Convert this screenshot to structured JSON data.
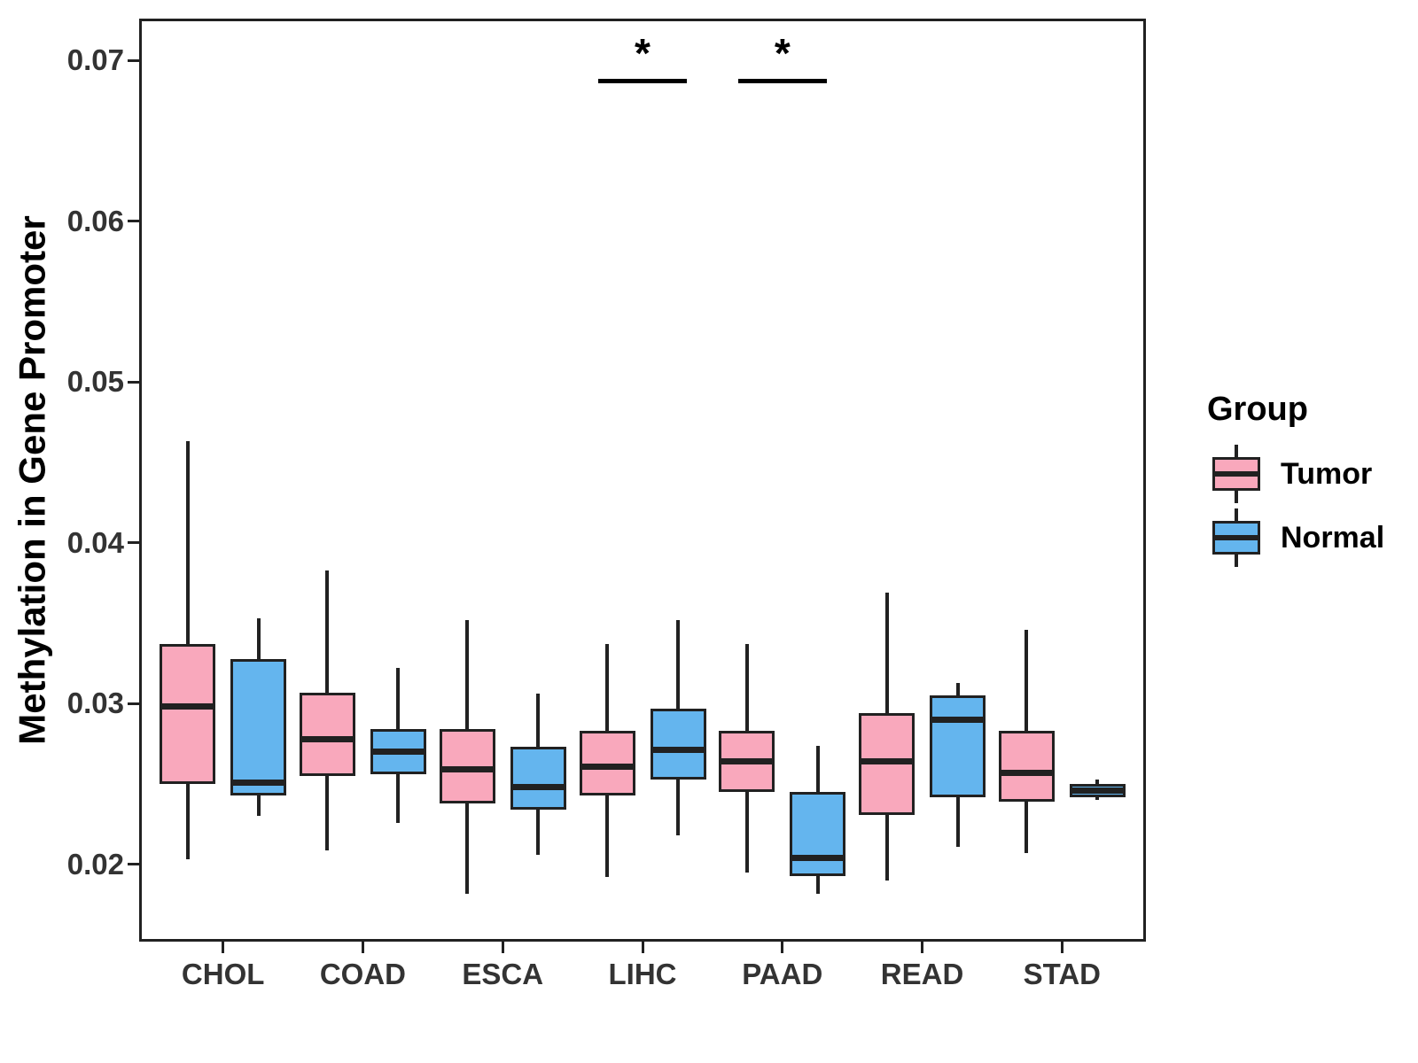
{
  "chart_data": {
    "type": "boxplot",
    "title": "",
    "xlabel": "",
    "ylabel": "Methylation in Gene Promoter",
    "categories": [
      "CHOL",
      "COAD",
      "ESCA",
      "LIHC",
      "PAAD",
      "READ",
      "STAD"
    ],
    "ylim": [
      0.0152,
      0.0726
    ],
    "yticks": [
      {
        "label": "0.02",
        "value": 0.02
      },
      {
        "label": "0.03",
        "value": 0.03
      },
      {
        "label": "0.04",
        "value": 0.04
      },
      {
        "label": "0.05",
        "value": 0.05
      },
      {
        "label": "0.06",
        "value": 0.06
      },
      {
        "label": "0.07",
        "value": 0.07
      }
    ],
    "grid": false,
    "legend": {
      "title": "Group",
      "position": "right",
      "entries": [
        {
          "label": "Tumor",
          "color": "#F9A8BC"
        },
        {
          "label": "Normal",
          "color": "#64B5EE"
        }
      ]
    },
    "series": [
      {
        "name": "Tumor",
        "color": "#F9A8BC",
        "boxes": [
          {
            "category": "CHOL",
            "whisker_low": 0.0203,
            "q1": 0.025,
            "median": 0.0298,
            "q3": 0.0337,
            "whisker_high": 0.0463
          },
          {
            "category": "COAD",
            "whisker_low": 0.0209,
            "q1": 0.0255,
            "median": 0.0278,
            "q3": 0.0307,
            "whisker_high": 0.0383
          },
          {
            "category": "ESCA",
            "whisker_low": 0.0182,
            "q1": 0.0238,
            "median": 0.0259,
            "q3": 0.0284,
            "whisker_high": 0.0352
          },
          {
            "category": "LIHC",
            "whisker_low": 0.0192,
            "q1": 0.0243,
            "median": 0.0261,
            "q3": 0.0283,
            "whisker_high": 0.0337
          },
          {
            "category": "PAAD",
            "whisker_low": 0.0195,
            "q1": 0.0245,
            "median": 0.0264,
            "q3": 0.0283,
            "whisker_high": 0.0337
          },
          {
            "category": "READ",
            "whisker_low": 0.019,
            "q1": 0.0231,
            "median": 0.0264,
            "q3": 0.0294,
            "whisker_high": 0.0369
          },
          {
            "category": "STAD",
            "whisker_low": 0.0207,
            "q1": 0.0239,
            "median": 0.0257,
            "q3": 0.0283,
            "whisker_high": 0.0346
          }
        ]
      },
      {
        "name": "Normal",
        "color": "#64B5EE",
        "boxes": [
          {
            "category": "CHOL",
            "whisker_low": 0.023,
            "q1": 0.0243,
            "median": 0.0251,
            "q3": 0.0328,
            "whisker_high": 0.0353
          },
          {
            "category": "COAD",
            "whisker_low": 0.0226,
            "q1": 0.0256,
            "median": 0.027,
            "q3": 0.0284,
            "whisker_high": 0.0322
          },
          {
            "category": "ESCA",
            "whisker_low": 0.0206,
            "q1": 0.0234,
            "median": 0.0248,
            "q3": 0.0273,
            "whisker_high": 0.0306
          },
          {
            "category": "LIHC",
            "whisker_low": 0.0218,
            "q1": 0.0253,
            "median": 0.0271,
            "q3": 0.0297,
            "whisker_high": 0.0352
          },
          {
            "category": "PAAD",
            "whisker_low": 0.0182,
            "q1": 0.0193,
            "median": 0.0204,
            "q3": 0.0245,
            "whisker_high": 0.0274
          },
          {
            "category": "READ",
            "whisker_low": 0.0211,
            "q1": 0.0242,
            "median": 0.029,
            "q3": 0.0305,
            "whisker_high": 0.0313
          },
          {
            "category": "STAD",
            "whisker_low": 0.024,
            "q1": 0.0242,
            "median": 0.0246,
            "q3": 0.025,
            "whisker_high": 0.0253
          }
        ]
      }
    ],
    "annotations": [
      {
        "category": "LIHC",
        "symbol": "*",
        "y": 0.0687
      },
      {
        "category": "PAAD",
        "symbol": "*",
        "y": 0.0687
      }
    ],
    "colors": {
      "stroke": "#212121",
      "tick_text": "#333333",
      "title_text": "#000000",
      "background": "#ffffff"
    }
  }
}
